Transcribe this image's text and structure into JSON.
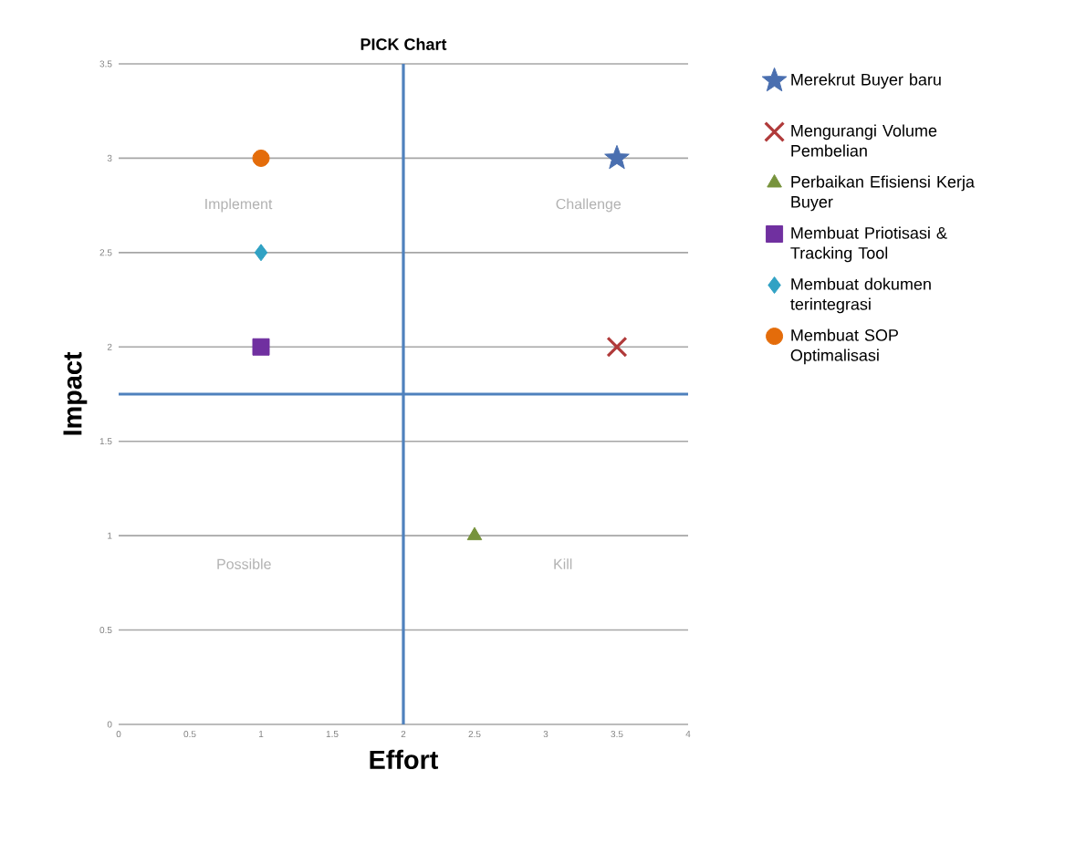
{
  "chart_data": {
    "type": "scatter",
    "title": "PICK Chart",
    "xlabel": "Effort",
    "ylabel": "Impact",
    "xlim": [
      0,
      4
    ],
    "xticks": [
      0,
      0.5,
      1,
      1.5,
      2,
      2.5,
      3,
      3.5,
      4
    ],
    "ylim": [
      0,
      3.5
    ],
    "yticks": [
      0,
      0.5,
      1,
      1.5,
      2,
      2.5,
      3,
      3.5
    ],
    "grid": "y",
    "legend": "right",
    "series": [
      {
        "name": "Merekrut Buyer baru",
        "color": "#4a6fb0",
        "marker": "star",
        "x": [
          3.5
        ],
        "values": [
          3
        ]
      },
      {
        "name": "Mengurangi Volume Pembelian",
        "color": "#b03a3a",
        "marker": "cross",
        "x": [
          3.5
        ],
        "values": [
          2
        ]
      },
      {
        "name": "Perbaikan Efisiensi Kerja Buyer",
        "color": "#77933c",
        "marker": "triangle",
        "x": [
          2.5
        ],
        "values": [
          1
        ]
      },
      {
        "name": "Membuat Priotisasi & Tracking Tool",
        "color": "#7030a0",
        "marker": "square",
        "x": [
          1
        ],
        "values": [
          2
        ]
      },
      {
        "name": "Membuat dokumen terintegrasi",
        "color": "#31a2c4",
        "marker": "diamond",
        "x": [
          1
        ],
        "values": [
          2.5
        ]
      },
      {
        "name": "Membuat SOP Optimalisasi",
        "color": "#e46c0a",
        "marker": "circle",
        "x": [
          1
        ],
        "values": [
          3
        ]
      }
    ],
    "ref_lines": [
      {
        "axis": "y",
        "value": 1.75,
        "color": "#4f81bd"
      },
      {
        "axis": "x",
        "value": 2,
        "color": "#4f81bd"
      }
    ],
    "annotations": [
      "Implement",
      "Challenge",
      "Possible",
      "Kill"
    ]
  }
}
